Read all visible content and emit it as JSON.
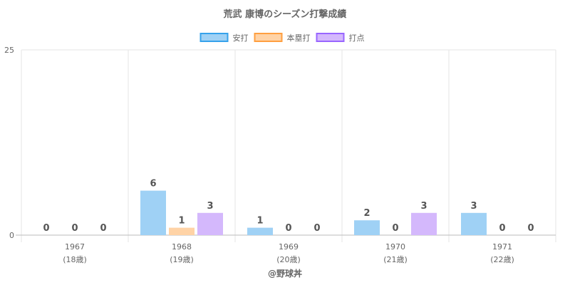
{
  "chart_data": {
    "type": "bar",
    "title": "荒武 康博のシーズン打撃成績",
    "categories": [
      {
        "year": "1967",
        "age": "(18歳)"
      },
      {
        "year": "1968",
        "age": "(19歳)"
      },
      {
        "year": "1969",
        "age": "(20歳)"
      },
      {
        "year": "1970",
        "age": "(21歳)"
      },
      {
        "year": "1971",
        "age": "(22歳)"
      }
    ],
    "series": [
      {
        "name": "安打",
        "values": [
          0,
          6,
          1,
          2,
          3
        ],
        "fill": "#9fd1f5",
        "border": "#36a2eb"
      },
      {
        "name": "本塁打",
        "values": [
          0,
          1,
          0,
          0,
          0
        ],
        "fill": "#ffd3a6",
        "border": "#ff9f40"
      },
      {
        "name": "打点",
        "values": [
          0,
          3,
          0,
          3,
          0
        ],
        "fill": "#d4b8fc",
        "border": "#9966ff"
      }
    ],
    "ylim": [
      0,
      25
    ],
    "yticks": [
      "0",
      "25"
    ],
    "xlabel": "",
    "ylabel": "",
    "grid": true,
    "legend_position": "top"
  },
  "footer": {
    "credit": "@野球丼"
  }
}
